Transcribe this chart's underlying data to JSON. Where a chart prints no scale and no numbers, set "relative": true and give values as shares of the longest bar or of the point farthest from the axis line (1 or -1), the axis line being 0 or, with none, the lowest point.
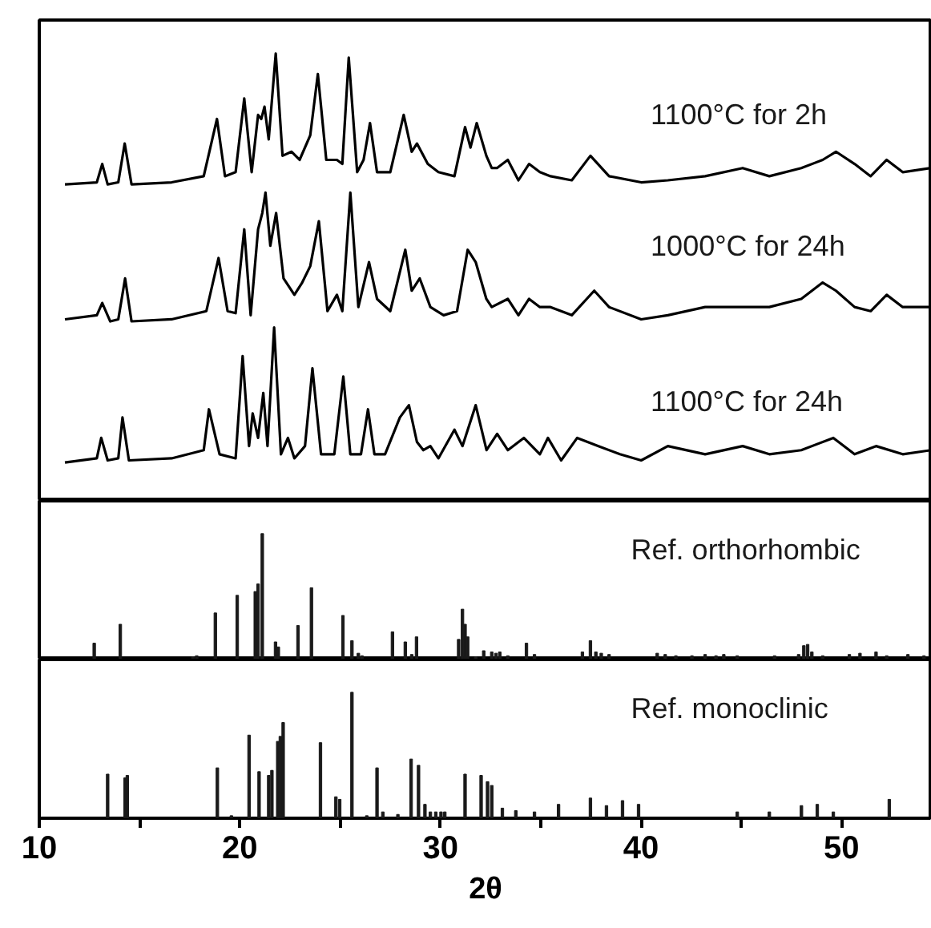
{
  "chart_data": [
    {
      "type": "line",
      "relative": true,
      "xlim": [
        10,
        54.5
      ],
      "tick_labels": false,
      "series": [
        {
          "name": "1100°C for 2h",
          "color": "#000000",
          "x": [
            11.28,
            12.87,
            13.14,
            13.41,
            13.94,
            14.26,
            14.6,
            16.6,
            18.2,
            18.86,
            19.26,
            19.79,
            20.22,
            20.59,
            20.91,
            21.07,
            21.23,
            21.44,
            21.79,
            22.13,
            22.58,
            22.98,
            23.51,
            23.89,
            24.31,
            24.84,
            25.11,
            25.43,
            25.85,
            26.17,
            26.49,
            26.84,
            27.5,
            28.17,
            28.57,
            28.83,
            29.37,
            29.9,
            30.7,
            31.23,
            31.5,
            31.81,
            32.29,
            32.56,
            32.82,
            33.36,
            33.89,
            34.42,
            34.96,
            35.49,
            36.55,
            37.48,
            38.41,
            40.01,
            41.34,
            43.2,
            45.07,
            46.4,
            47.99,
            49.06,
            49.72,
            50.65,
            51.45,
            52.25,
            53.05,
            54.46
          ],
          "values": [
            0.68,
            0.685,
            0.73,
            0.68,
            0.685,
            0.78,
            0.68,
            0.685,
            0.7,
            0.84,
            0.7,
            0.71,
            0.89,
            0.71,
            0.85,
            0.84,
            0.87,
            0.79,
            1.0,
            0.75,
            0.76,
            0.74,
            0.8,
            0.95,
            0.74,
            0.74,
            0.73,
            0.99,
            0.71,
            0.74,
            0.83,
            0.71,
            0.71,
            0.85,
            0.76,
            0.78,
            0.73,
            0.71,
            0.7,
            0.82,
            0.77,
            0.83,
            0.75,
            0.72,
            0.72,
            0.74,
            0.69,
            0.73,
            0.71,
            0.7,
            0.69,
            0.75,
            0.7,
            0.685,
            0.69,
            0.7,
            0.72,
            0.7,
            0.72,
            0.74,
            0.76,
            0.73,
            0.7,
            0.74,
            0.71,
            0.72
          ]
        },
        {
          "name": "1000°C for 24h",
          "color": "#000000",
          "x": [
            11.28,
            12.87,
            13.14,
            13.54,
            13.94,
            14.28,
            14.6,
            16.6,
            18.33,
            18.94,
            19.39,
            19.79,
            20.22,
            20.54,
            20.91,
            21.12,
            21.28,
            21.52,
            21.81,
            22.18,
            22.72,
            23.11,
            23.51,
            23.94,
            24.37,
            24.84,
            25.11,
            25.51,
            25.91,
            26.44,
            26.84,
            27.5,
            28.25,
            28.57,
            28.97,
            29.5,
            30.16,
            30.83,
            31.36,
            31.76,
            32.29,
            32.56,
            33.36,
            33.89,
            34.42,
            34.96,
            35.49,
            36.55,
            37.67,
            38.41,
            40.01,
            41.34,
            43.2,
            45.07,
            46.4,
            47.99,
            49.06,
            49.72,
            50.65,
            51.45,
            52.25,
            53.05,
            54.46
          ],
          "values": [
            0.35,
            0.36,
            0.39,
            0.345,
            0.35,
            0.45,
            0.345,
            0.35,
            0.37,
            0.5,
            0.37,
            0.365,
            0.57,
            0.36,
            0.57,
            0.61,
            0.66,
            0.53,
            0.61,
            0.45,
            0.41,
            0.44,
            0.48,
            0.59,
            0.37,
            0.41,
            0.37,
            0.66,
            0.38,
            0.49,
            0.4,
            0.37,
            0.52,
            0.42,
            0.45,
            0.38,
            0.36,
            0.37,
            0.52,
            0.49,
            0.4,
            0.38,
            0.4,
            0.36,
            0.4,
            0.38,
            0.38,
            0.36,
            0.42,
            0.38,
            0.35,
            0.36,
            0.38,
            0.38,
            0.38,
            0.4,
            0.44,
            0.42,
            0.38,
            0.37,
            0.41,
            0.38,
            0.38
          ]
        },
        {
          "name": "1100°C for 24h",
          "color": "#000000",
          "x": [
            11.28,
            12.87,
            13.09,
            13.41,
            13.94,
            14.15,
            14.47,
            16.6,
            18.2,
            18.46,
            18.99,
            19.79,
            20.14,
            20.46,
            20.64,
            20.91,
            21.17,
            21.38,
            21.71,
            22.05,
            22.4,
            22.72,
            23.25,
            23.62,
            24.05,
            24.71,
            25.16,
            25.51,
            26.04,
            26.39,
            26.71,
            27.24,
            27.98,
            28.43,
            28.83,
            29.15,
            29.5,
            29.9,
            30.7,
            31.1,
            31.76,
            32.3,
            32.83,
            33.36,
            34.16,
            34.96,
            35.36,
            36.02,
            36.82,
            37.88,
            38.95,
            40.01,
            41.34,
            43.2,
            45.07,
            46.4,
            47.99,
            49.59,
            50.65,
            51.72,
            53.05,
            54.46
          ],
          "values": [
            0.0,
            0.01,
            0.06,
            0.005,
            0.01,
            0.11,
            0.005,
            0.01,
            0.03,
            0.13,
            0.02,
            0.01,
            0.26,
            0.04,
            0.12,
            0.06,
            0.17,
            0.04,
            0.33,
            0.02,
            0.06,
            0.01,
            0.04,
            0.23,
            0.02,
            0.02,
            0.21,
            0.02,
            0.02,
            0.13,
            0.02,
            0.02,
            0.11,
            0.14,
            0.05,
            0.03,
            0.04,
            0.01,
            0.08,
            0.04,
            0.14,
            0.03,
            0.07,
            0.03,
            0.06,
            0.02,
            0.06,
            0.005,
            0.06,
            0.04,
            0.02,
            0.005,
            0.04,
            0.02,
            0.04,
            0.02,
            0.03,
            0.06,
            0.02,
            0.04,
            0.02,
            0.03
          ]
        }
      ]
    },
    {
      "type": "bar",
      "relative": true,
      "xlim": [
        10,
        54.5
      ],
      "tick_labels": false,
      "series": [
        {
          "name": "Ref. orthorhombic",
          "color": "#1a1a1a",
          "x": [
            12.74,
            14.04,
            17.66,
            17.85,
            18.78,
            19.87,
            20.77,
            20.91,
            21.12,
            21.78,
            21.92,
            22.9,
            23.57,
            25.14,
            25.59,
            25.91,
            26.09,
            27.61,
            28.25,
            28.57,
            28.81,
            30.91,
            31.1,
            31.23,
            31.36,
            31.76,
            32.16,
            32.56,
            32.77,
            32.96,
            33.36,
            34.29,
            34.69,
            37.08,
            37.48,
            37.75,
            38.02,
            38.41,
            40.81,
            41.21,
            41.74,
            42.54,
            43.2,
            43.74,
            44.13,
            44.8,
            46.66,
            47.86,
            48.12,
            48.31,
            48.52,
            49.06,
            50.39,
            50.92,
            51.72,
            52.25,
            53.31,
            54.11
          ],
          "values": [
            0.13,
            0.28,
            0.02,
            0.03,
            0.37,
            0.51,
            0.54,
            0.6,
            1.0,
            0.14,
            0.1,
            0.27,
            0.57,
            0.35,
            0.15,
            0.05,
            0.03,
            0.22,
            0.14,
            0.04,
            0.18,
            0.16,
            0.4,
            0.28,
            0.18,
            0.02,
            0.07,
            0.06,
            0.05,
            0.06,
            0.03,
            0.13,
            0.04,
            0.06,
            0.15,
            0.06,
            0.05,
            0.04,
            0.05,
            0.04,
            0.03,
            0.03,
            0.04,
            0.03,
            0.04,
            0.03,
            0.03,
            0.04,
            0.11,
            0.12,
            0.06,
            0.03,
            0.04,
            0.05,
            0.06,
            0.03,
            0.04,
            0.03
          ]
        }
      ]
    },
    {
      "type": "bar",
      "relative": true,
      "xlim": [
        10,
        54.5
      ],
      "tick_labels": "x",
      "xlabel": "2θ",
      "xticks": [
        10,
        {
          "value": 15,
          "label": null
        },
        20,
        {
          "value": 25,
          "label": null
        },
        30,
        {
          "value": 35,
          "label": null
        },
        40,
        {
          "value": 45,
          "label": null
        },
        50
      ],
      "series": [
        {
          "name": "Ref. monoclinic",
          "color": "#1a1a1a",
          "x": [
            13.41,
            14.28,
            14.39,
            18.88,
            19.58,
            20.46,
            20.96,
            21.44,
            21.6,
            21.89,
            22.02,
            22.16,
            24.02,
            24.79,
            24.98,
            25.59,
            26.33,
            26.84,
            27.13,
            27.88,
            28.54,
            28.91,
            29.23,
            29.5,
            29.77,
            30.03,
            30.22,
            31.23,
            32.03,
            32.35,
            32.56,
            33.09,
            33.76,
            34.69,
            35.89,
            37.48,
            38.28,
            39.08,
            39.88,
            44.8,
            46.4,
            48.0,
            48.79,
            49.59,
            52.38
          ],
          "values": [
            0.35,
            0.32,
            0.34,
            0.4,
            0.02,
            0.66,
            0.37,
            0.34,
            0.38,
            0.61,
            0.65,
            0.76,
            0.6,
            0.17,
            0.15,
            1.0,
            0.02,
            0.4,
            0.05,
            0.03,
            0.47,
            0.42,
            0.11,
            0.05,
            0.05,
            0.05,
            0.05,
            0.35,
            0.34,
            0.29,
            0.26,
            0.08,
            0.06,
            0.05,
            0.11,
            0.16,
            0.1,
            0.14,
            0.11,
            0.05,
            0.05,
            0.1,
            0.11,
            0.05,
            0.15
          ]
        }
      ]
    }
  ]
}
